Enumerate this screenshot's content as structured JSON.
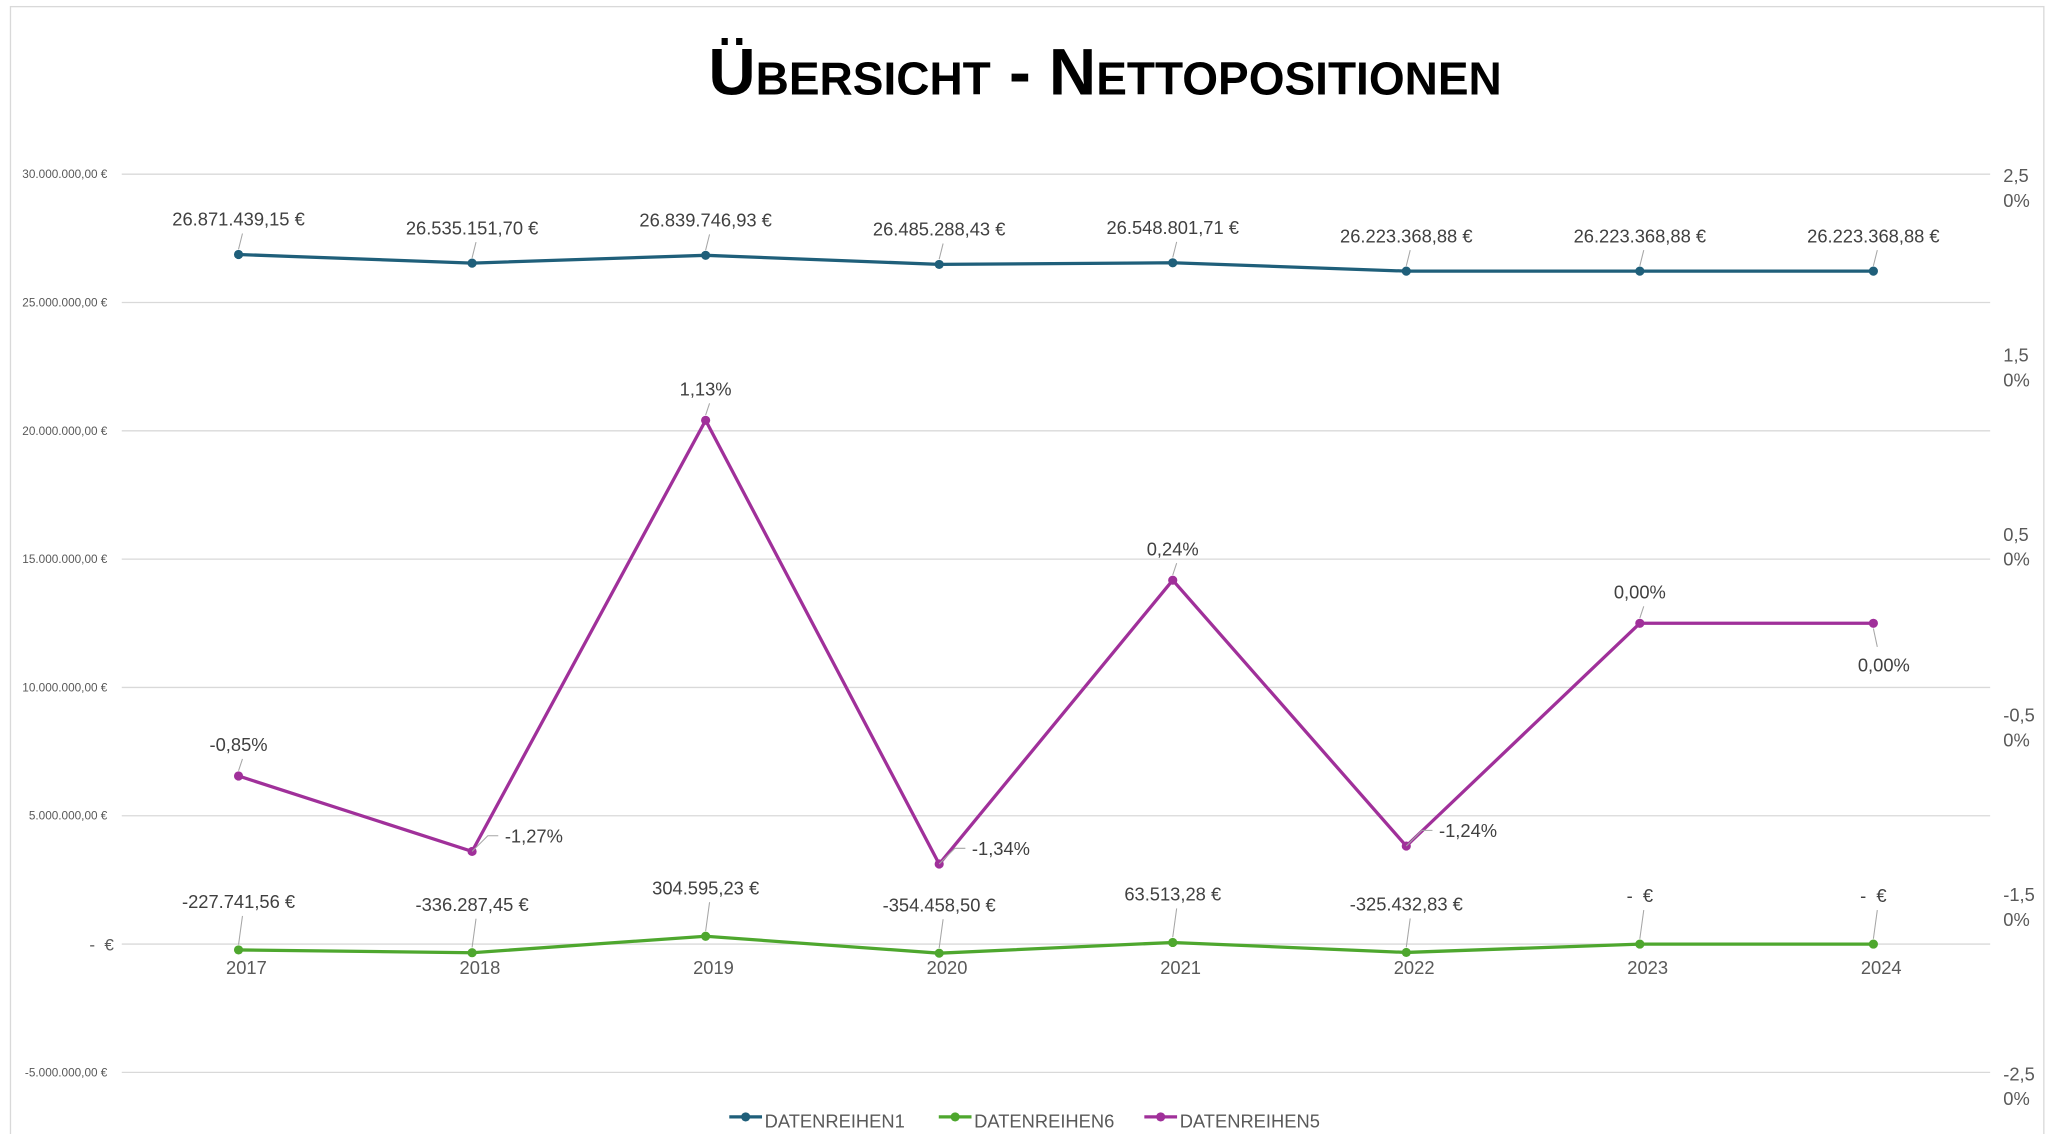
{
  "chart_data": {
    "type": "line",
    "title": "Übersicht - Nettopositionen",
    "categories": [
      "2017",
      "2018",
      "2019",
      "2020",
      "2021",
      "2022",
      "2023",
      "2024"
    ],
    "series": [
      {
        "name": "DATENREIHEN1",
        "color": "#1f5f7a",
        "values": [
          26871439.15,
          26535151.7,
          26839746.93,
          26485288.43,
          26548801.71,
          26223368.88,
          26223368.88,
          26223368.88
        ],
        "value_labels": [
          "26.871.439,15 €",
          "26.535.151,70 €",
          "26.839.746,93 €",
          "26.485.288,43 €",
          "26.548.801,71 €",
          "26.223.368,88 €",
          "26.223.368,88 €",
          "26.223.368,88 €"
        ]
      },
      {
        "name": "DATENREIHEN6",
        "color": "#4ea72e",
        "values": [
          -227741.56,
          -336287.45,
          304595.23,
          -354458.5,
          63513.28,
          -325432.83,
          0,
          0
        ],
        "value_labels": [
          "-227.741,56 €",
          "-336.287,45 €",
          "304.595,23 €",
          "-354.458,50 €",
          "63.513,28 €",
          "-325.432,83 €",
          "-  €",
          "-  €"
        ]
      },
      {
        "name": "DATENREIHEN5",
        "color": "#a0309a",
        "axis": "y2",
        "values": [
          -0.85,
          -1.27,
          1.13,
          -1.34,
          0.24,
          -1.24,
          0.0,
          0.0
        ],
        "value_labels": [
          "-0,85%",
          "-1,27%",
          "1,13%",
          "-1,34%",
          "0,24%",
          "-1,24%",
          "0,00%",
          "0,00%"
        ]
      }
    ],
    "ylim": [
      -5000000,
      30000000
    ],
    "yticks": [
      {
        "value": -5000000,
        "label": "-5.000.000,00 €"
      },
      {
        "value": 0,
        "label": "-  €"
      },
      {
        "value": 5000000,
        "label": "5.000.000,00 €"
      },
      {
        "value": 10000000,
        "label": "10.000.000,00 €"
      },
      {
        "value": 15000000,
        "label": "15.000.000,00 €"
      },
      {
        "value": 20000000,
        "label": "20.000.000,00 €"
      },
      {
        "value": 25000000,
        "label": "25.000.000,00 €"
      },
      {
        "value": 30000000,
        "label": "30.000.000,00 €"
      }
    ],
    "y2lim": [
      -2.5,
      2.5
    ],
    "y2ticks": [
      {
        "value": -2.5,
        "label": "-2,50%"
      },
      {
        "value": -1.5,
        "label": "-1,50%"
      },
      {
        "value": -0.5,
        "label": "-0,50%"
      },
      {
        "value": 0.5,
        "label": "0,50%"
      },
      {
        "value": 1.5,
        "label": "1,50%"
      },
      {
        "value": 2.5,
        "label": "2,50%"
      }
    ],
    "grid": true,
    "legend": "bottom"
  }
}
